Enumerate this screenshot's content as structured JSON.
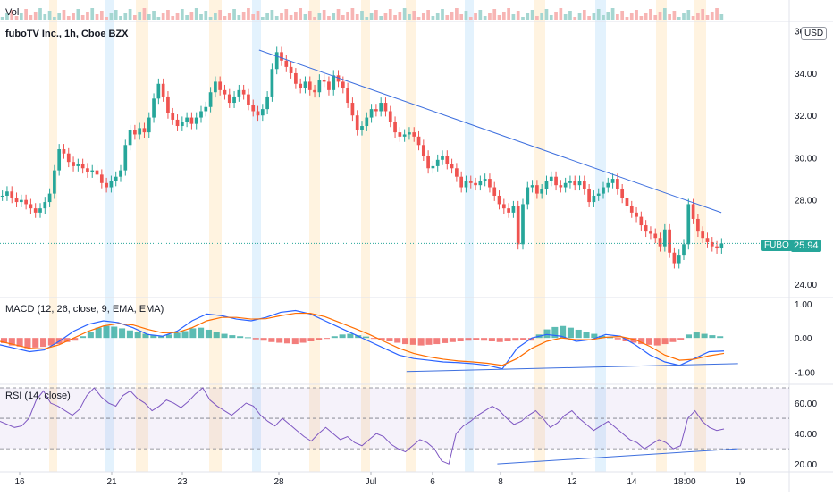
{
  "header": {
    "volume_label": "Vol",
    "title": "fuboTV Inc., 1h, Cboe BZX",
    "currency_button": "USD",
    "last_price_symbol": "FUBO",
    "last_price": "25.94"
  },
  "price_axis": {
    "ticks": [
      "36",
      "34.00",
      "32.00",
      "30.00",
      "28.00",
      "24.00"
    ]
  },
  "macd": {
    "label": "MACD (12, 26, close, 9, EMA, EMA)",
    "axis_ticks": [
      "1.00",
      "0.00",
      "-1.00"
    ]
  },
  "rsi": {
    "label": "RSI (14, close)",
    "axis_ticks": [
      "60.00",
      "40.00",
      "20.00"
    ]
  },
  "time_axis": {
    "ticks": [
      "16",
      "21",
      "23",
      "28",
      "Jul",
      "6",
      "8",
      "12",
      "14",
      "18:00",
      "19"
    ]
  },
  "colors": {
    "up": "#26a69a",
    "down": "#ef5350",
    "trend": "#3d6fde",
    "rsi_line": "#7e57c2",
    "macd_line": "#2962ff",
    "signal_line": "#ff6d00"
  },
  "chart_data": [
    {
      "type": "candlestick",
      "title": "fuboTV Inc., 1h, Cboe BZX",
      "ylim": [
        23.5,
        36.2
      ],
      "close": [
        28.2,
        28.4,
        28.1,
        27.9,
        28.0,
        27.8,
        27.6,
        27.4,
        27.6,
        27.9,
        28.3,
        29.4,
        30.4,
        30.2,
        29.8,
        29.6,
        29.7,
        29.5,
        29.3,
        29.4,
        29.2,
        28.8,
        28.6,
        28.9,
        29.1,
        29.4,
        30.6,
        31.3,
        31.1,
        31.4,
        31.2,
        31.9,
        32.8,
        33.5,
        32.9,
        32.1,
        31.8,
        31.5,
        31.7,
        31.9,
        31.6,
        31.9,
        32.2,
        32.4,
        33.1,
        33.6,
        33.2,
        33.0,
        32.6,
        32.9,
        33.2,
        33.0,
        32.5,
        32.2,
        32.0,
        32.3,
        32.9,
        34.2,
        35.0,
        34.6,
        34.3,
        34.0,
        33.5,
        33.3,
        33.6,
        33.2,
        33.1,
        33.7,
        33.6,
        33.2,
        33.9,
        33.6,
        33.3,
        32.6,
        32.0,
        31.3,
        31.5,
        31.9,
        32.3,
        32.2,
        32.6,
        32.2,
        31.7,
        31.2,
        31.0,
        31.1,
        31.2,
        31.0,
        30.6,
        30.1,
        29.5,
        29.6,
        29.9,
        30.1,
        29.7,
        29.5,
        29.1,
        28.6,
        28.9,
        28.8,
        28.7,
        28.9,
        29.0,
        28.6,
        28.2,
        27.8,
        27.6,
        27.4,
        27.7,
        25.9,
        27.8,
        28.6,
        28.7,
        28.3,
        28.5,
        28.9,
        29.1,
        28.7,
        28.6,
        28.8,
        28.9,
        28.7,
        28.9,
        28.5,
        27.9,
        28.2,
        28.3,
        28.6,
        28.8,
        29.0,
        28.5,
        28.1,
        27.7,
        27.4,
        27.2,
        26.8,
        26.5,
        26.4,
        26.2,
        25.8,
        26.6,
        25.5,
        25.0,
        25.4,
        25.9,
        27.8,
        27.1,
        26.5,
        26.2,
        26.0,
        25.8,
        25.7,
        25.94
      ],
      "trendline": [
        {
          "x": 0.311,
          "y": 35.1
        },
        {
          "x": 0.866,
          "y": 27.4
        }
      ],
      "last_price": 25.94
    },
    {
      "type": "histogram+line",
      "title": "MACD (12, 26, close, 9, EMA, EMA)",
      "ylim": [
        -1.3,
        1.1
      ],
      "histogram": [
        -0.15,
        -0.22,
        -0.25,
        -0.3,
        -0.28,
        -0.26,
        -0.22,
        -0.18,
        -0.12,
        -0.08,
        0.05,
        0.18,
        0.3,
        0.35,
        0.33,
        0.28,
        0.22,
        0.18,
        0.12,
        0.08,
        0.05,
        0.1,
        0.15,
        0.2,
        0.28,
        0.3,
        0.24,
        0.18,
        0.12,
        0.08,
        0.05,
        0.02,
        -0.04,
        -0.08,
        -0.12,
        -0.14,
        -0.16,
        -0.18,
        -0.14,
        -0.1,
        -0.06,
        -0.02,
        0.05,
        0.1,
        0.12,
        0.08,
        0.04,
        -0.02,
        -0.06,
        -0.1,
        -0.14,
        -0.18,
        -0.2,
        -0.22,
        -0.2,
        -0.18,
        -0.15,
        -0.12,
        -0.1,
        -0.08,
        -0.06,
        -0.08,
        -0.1,
        -0.12,
        -0.1,
        -0.08,
        -0.06,
        -0.08,
        0.1,
        0.25,
        0.32,
        0.35,
        0.3,
        0.24,
        0.18,
        0.12,
        0.06,
        0.02,
        -0.04,
        -0.1,
        -0.14,
        -0.18,
        -0.2,
        -0.22,
        -0.18,
        -0.12,
        -0.06,
        0.1,
        0.16,
        0.12,
        0.08,
        0.05
      ],
      "macd_line": [
        -0.2,
        -0.3,
        -0.4,
        -0.35,
        -0.1,
        0.2,
        0.4,
        0.5,
        0.45,
        0.3,
        0.1,
        0.05,
        0.2,
        0.5,
        0.7,
        0.65,
        0.55,
        0.5,
        0.6,
        0.75,
        0.8,
        0.7,
        0.5,
        0.3,
        0.1,
        -0.1,
        -0.3,
        -0.5,
        -0.6,
        -0.65,
        -0.7,
        -0.72,
        -0.75,
        -0.8,
        -0.9,
        -0.3,
        0.0,
        0.1,
        0.05,
        -0.1,
        -0.05,
        0.1,
        0.05,
        -0.2,
        -0.5,
        -0.7,
        -0.8,
        -0.6,
        -0.4,
        -0.38
      ],
      "signal_line": [
        -0.1,
        -0.2,
        -0.3,
        -0.32,
        -0.2,
        0.0,
        0.2,
        0.35,
        0.42,
        0.38,
        0.25,
        0.15,
        0.16,
        0.3,
        0.5,
        0.6,
        0.6,
        0.55,
        0.56,
        0.65,
        0.72,
        0.72,
        0.62,
        0.45,
        0.28,
        0.1,
        -0.1,
        -0.3,
        -0.45,
        -0.55,
        -0.62,
        -0.67,
        -0.7,
        -0.74,
        -0.8,
        -0.6,
        -0.3,
        -0.1,
        0.0,
        -0.05,
        -0.05,
        0.02,
        0.04,
        -0.05,
        -0.25,
        -0.5,
        -0.65,
        -0.62,
        -0.52,
        -0.45
      ],
      "trendline": [
        {
          "x": 0.488,
          "y": -0.98
        },
        {
          "x": 0.886,
          "y": -0.75
        }
      ]
    },
    {
      "type": "line",
      "title": "RSI (14, close)",
      "ylim": [
        16,
        70
      ],
      "bands": [
        70,
        50,
        30
      ],
      "rsi": [
        48,
        46,
        44,
        45,
        50,
        62,
        68,
        60,
        58,
        55,
        52,
        56,
        65,
        70,
        64,
        60,
        58,
        65,
        68,
        63,
        60,
        55,
        58,
        62,
        60,
        57,
        61,
        66,
        70,
        62,
        58,
        55,
        52,
        56,
        60,
        58,
        52,
        48,
        45,
        50,
        46,
        42,
        38,
        35,
        40,
        44,
        40,
        36,
        38,
        34,
        32,
        36,
        40,
        38,
        33,
        30,
        28,
        32,
        36,
        34,
        30,
        22,
        20,
        40,
        45,
        48,
        52,
        55,
        58,
        55,
        50,
        46,
        48,
        52,
        55,
        50,
        44,
        47,
        52,
        55,
        50,
        46,
        42,
        45,
        48,
        44,
        40,
        36,
        34,
        30,
        33,
        36,
        34,
        30,
        32,
        50,
        55,
        48,
        44,
        42,
        43
      ],
      "trendline": [
        {
          "x": 0.597,
          "y": 20
        },
        {
          "x": 0.886,
          "y": 30
        }
      ]
    }
  ]
}
